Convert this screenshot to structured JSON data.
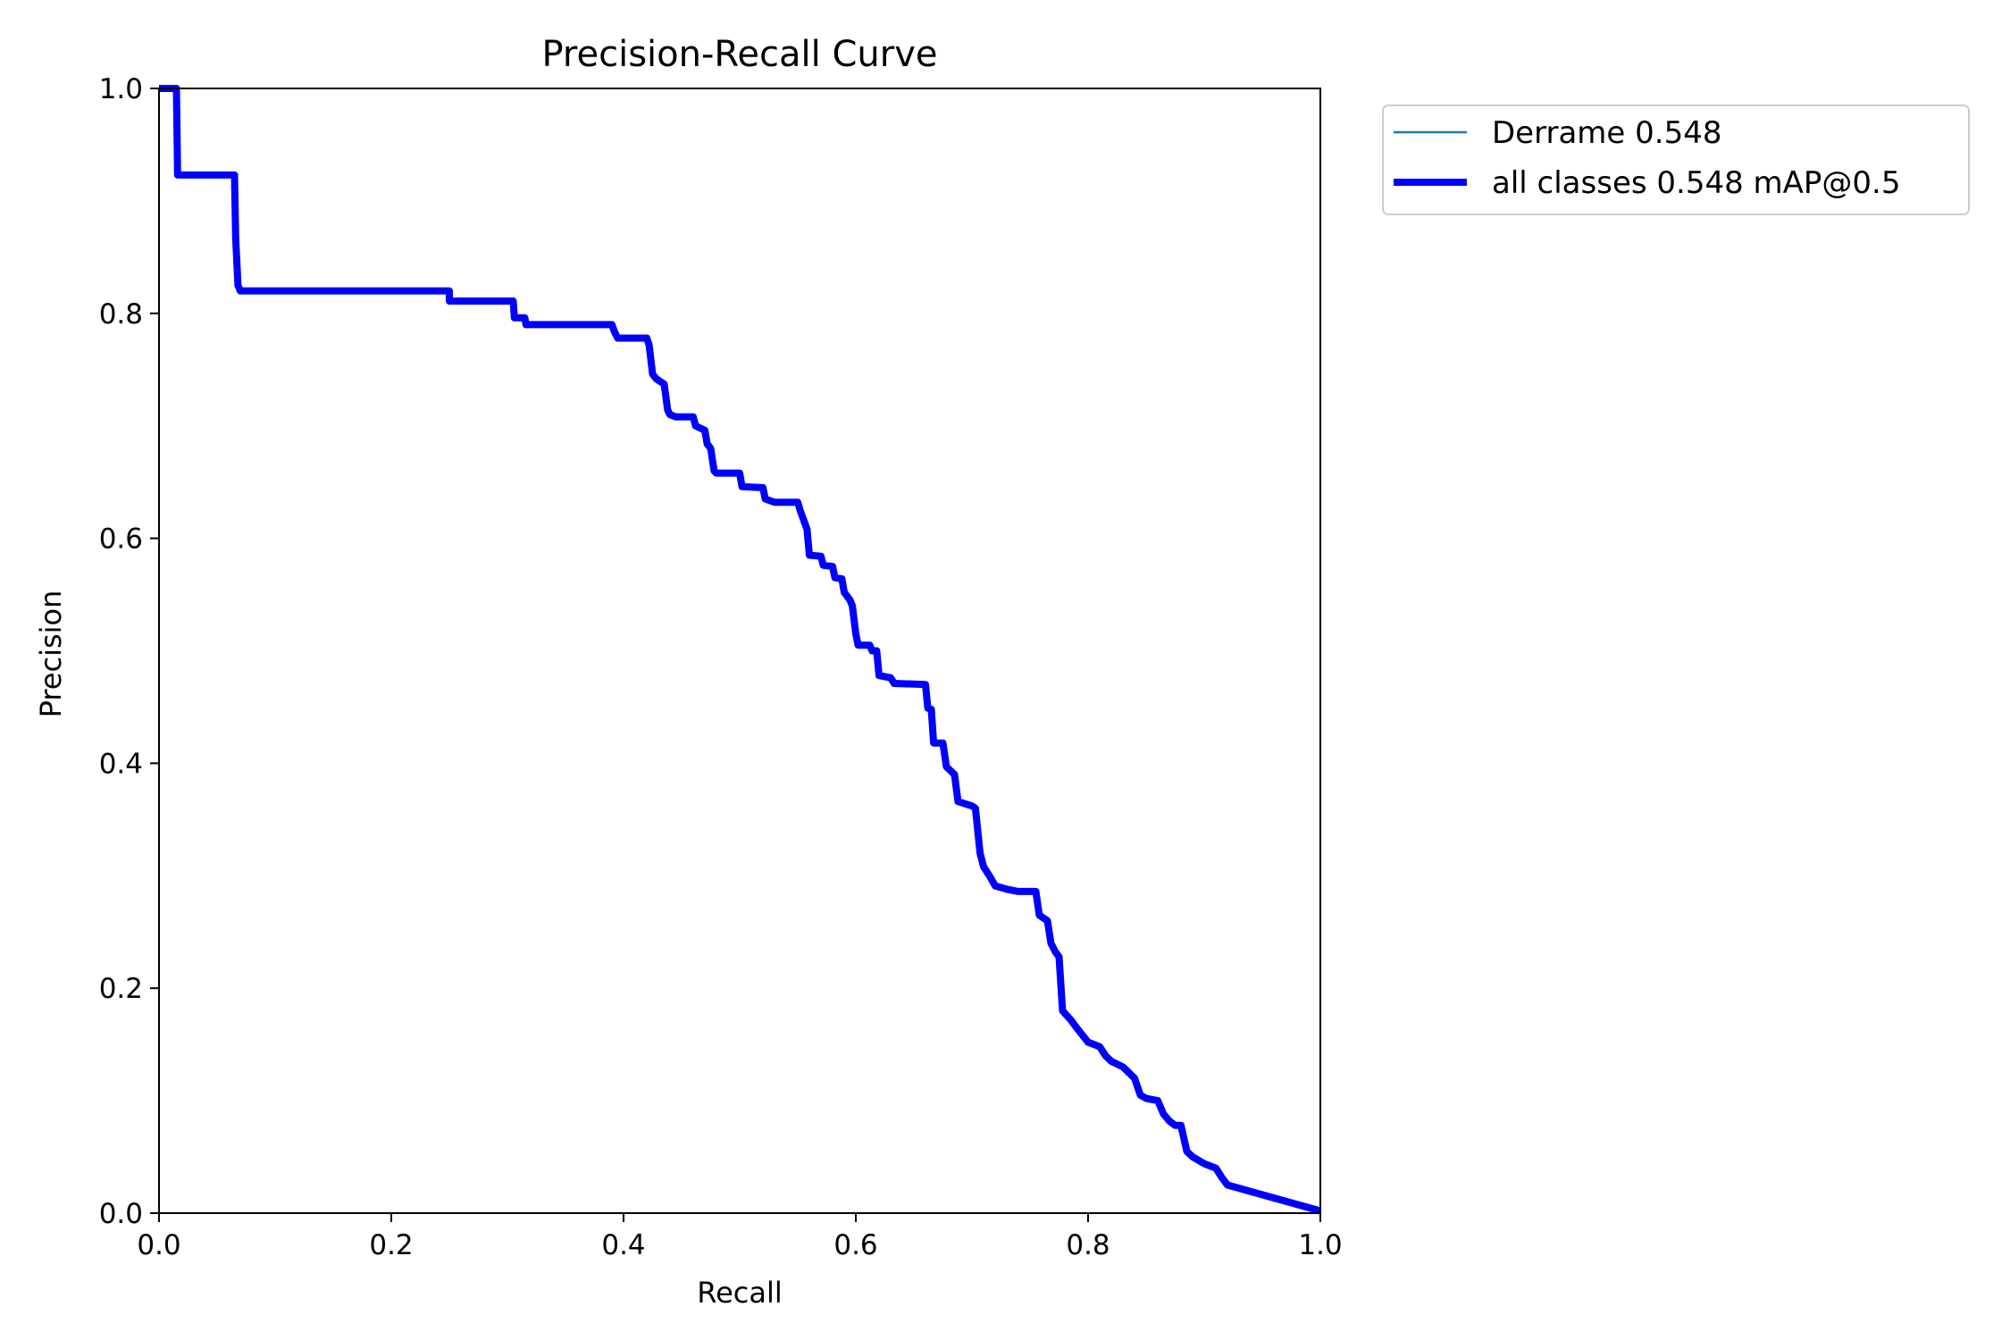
{
  "chart_data": {
    "type": "line",
    "title": "Precision-Recall Curve",
    "xlabel": "Recall",
    "ylabel": "Precision",
    "xlim": [
      0.0,
      1.0
    ],
    "ylim": [
      0.0,
      1.0
    ],
    "x_ticks": [
      "0.0",
      "0.2",
      "0.4",
      "0.6",
      "0.8",
      "1.0"
    ],
    "y_ticks": [
      "0.0",
      "0.2",
      "0.4",
      "0.6",
      "0.8",
      "1.0"
    ],
    "grid": false,
    "legend": {
      "position": "outside-upper-right"
    },
    "series": [
      {
        "name": "Derrame 0.548",
        "color": "#1f77b4",
        "linewidth": "thin",
        "x": [
          0.0,
          0.015,
          0.016,
          0.065,
          0.066,
          0.068,
          0.07,
          0.25,
          0.25,
          0.305,
          0.306,
          0.315,
          0.316,
          0.39,
          0.392,
          0.395,
          0.42,
          0.422,
          0.425,
          0.428,
          0.435,
          0.438,
          0.44,
          0.445,
          0.46,
          0.462,
          0.47,
          0.472,
          0.475,
          0.478,
          0.48,
          0.5,
          0.502,
          0.52,
          0.522,
          0.53,
          0.55,
          0.552,
          0.558,
          0.56,
          0.57,
          0.572,
          0.58,
          0.582,
          0.588,
          0.59,
          0.595,
          0.597,
          0.6,
          0.602,
          0.612,
          0.614,
          0.618,
          0.62,
          0.63,
          0.633,
          0.66,
          0.662,
          0.665,
          0.667,
          0.675,
          0.678,
          0.685,
          0.688,
          0.7,
          0.703,
          0.707,
          0.71,
          0.715,
          0.72,
          0.73,
          0.74,
          0.755,
          0.758,
          0.765,
          0.768,
          0.772,
          0.775,
          0.778,
          0.785,
          0.79,
          0.8,
          0.81,
          0.815,
          0.82,
          0.83,
          0.835,
          0.84,
          0.845,
          0.85,
          0.86,
          0.865,
          0.87,
          0.875,
          0.88,
          0.885,
          0.89,
          0.9,
          0.91,
          0.915,
          0.92,
          1.0
        ],
        "y": [
          1.0,
          1.0,
          0.923,
          0.923,
          0.867,
          0.825,
          0.82,
          0.82,
          0.811,
          0.811,
          0.796,
          0.796,
          0.79,
          0.79,
          0.784,
          0.778,
          0.778,
          0.772,
          0.746,
          0.742,
          0.737,
          0.714,
          0.71,
          0.708,
          0.708,
          0.7,
          0.696,
          0.684,
          0.68,
          0.66,
          0.658,
          0.658,
          0.646,
          0.645,
          0.635,
          0.632,
          0.632,
          0.625,
          0.608,
          0.585,
          0.584,
          0.576,
          0.575,
          0.565,
          0.564,
          0.552,
          0.545,
          0.54,
          0.515,
          0.505,
          0.505,
          0.5,
          0.5,
          0.478,
          0.476,
          0.471,
          0.47,
          0.449,
          0.448,
          0.418,
          0.418,
          0.397,
          0.39,
          0.366,
          0.362,
          0.36,
          0.32,
          0.308,
          0.3,
          0.291,
          0.288,
          0.286,
          0.286,
          0.265,
          0.26,
          0.24,
          0.232,
          0.228,
          0.18,
          0.172,
          0.165,
          0.152,
          0.148,
          0.14,
          0.135,
          0.13,
          0.125,
          0.12,
          0.105,
          0.102,
          0.1,
          0.088,
          0.082,
          0.078,
          0.078,
          0.055,
          0.05,
          0.044,
          0.04,
          0.032,
          0.025,
          0.002
        ]
      },
      {
        "name": "all classes 0.548 mAP@0.5",
        "color": "#0000ff",
        "linewidth": "thick",
        "same_as_series": 0
      }
    ]
  }
}
